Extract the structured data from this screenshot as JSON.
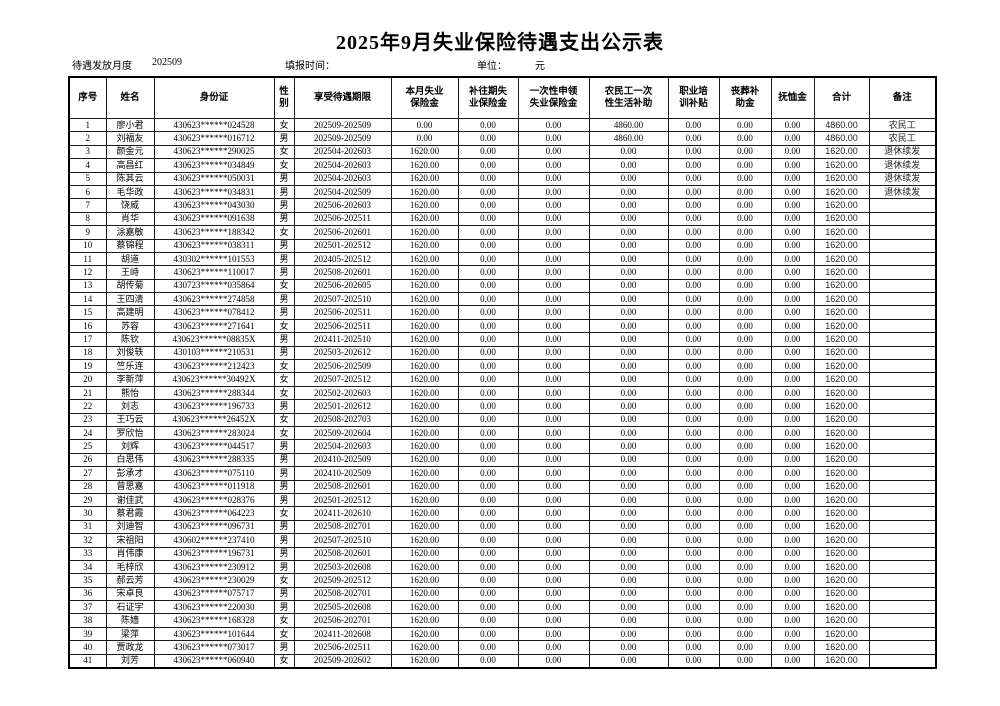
{
  "title": "2025年9月失业保险待遇支出公示表",
  "meta": {
    "period_label": "待遇发放月度",
    "period_value": "202509",
    "fill_time_label": "填报时间：",
    "unit_label": "单位：",
    "unit_value": "元"
  },
  "table": {
    "columns": [
      "序号",
      "姓名",
      "身份证",
      "性\n别",
      "享受待遇期限",
      "本月失业\n保险金",
      "补往期失\n业保险金",
      "一次性申领\n失业保险金",
      "农民工一次\n性生活补助",
      "职业培\n训补贴",
      "丧葬补\n助金",
      "抚恤金",
      "合计",
      "备注"
    ],
    "rows": [
      [
        "1",
        "廖小君",
        "430623******024528",
        "女",
        "202509-202509",
        "0.00",
        "0.00",
        "0.00",
        "4860.00",
        "0.00",
        "0.00",
        "0.00",
        "4860.00",
        "农民工"
      ],
      [
        "2",
        "刘福友",
        "430623******016712",
        "男",
        "202509-202509",
        "0.00",
        "0.00",
        "0.00",
        "4860.00",
        "0.00",
        "0.00",
        "0.00",
        "4860.00",
        "农民工"
      ],
      [
        "3",
        "颜金元",
        "430623******290025",
        "女",
        "202504-202603",
        "1620.00",
        "0.00",
        "0.00",
        "0.00",
        "0.00",
        "0.00",
        "0.00",
        "1620.00",
        "退休续发"
      ],
      [
        "4",
        "高昌红",
        "430623******034849",
        "女",
        "202504-202603",
        "1620.00",
        "0.00",
        "0.00",
        "0.00",
        "0.00",
        "0.00",
        "0.00",
        "1620.00",
        "退休续发"
      ],
      [
        "5",
        "陈其云",
        "430623******050031",
        "男",
        "202504-202603",
        "1620.00",
        "0.00",
        "0.00",
        "0.00",
        "0.00",
        "0.00",
        "0.00",
        "1620.00",
        "退休续发"
      ],
      [
        "6",
        "毛华政",
        "430623******034831",
        "男",
        "202504-202509",
        "1620.00",
        "0.00",
        "0.00",
        "0.00",
        "0.00",
        "0.00",
        "0.00",
        "1620.00",
        "退休续发"
      ],
      [
        "7",
        "饶威",
        "430623******043030",
        "男",
        "202506-202603",
        "1620.00",
        "0.00",
        "0.00",
        "0.00",
        "0.00",
        "0.00",
        "0.00",
        "1620.00",
        ""
      ],
      [
        "8",
        "肖华",
        "430623******091638",
        "男",
        "202506-202511",
        "1620.00",
        "0.00",
        "0.00",
        "0.00",
        "0.00",
        "0.00",
        "0.00",
        "1620.00",
        ""
      ],
      [
        "9",
        "涂嘉敏",
        "430623******188342",
        "女",
        "202506-202601",
        "1620.00",
        "0.00",
        "0.00",
        "0.00",
        "0.00",
        "0.00",
        "0.00",
        "1620.00",
        ""
      ],
      [
        "10",
        "蔡锦程",
        "430623******038311",
        "男",
        "202501-202512",
        "1620.00",
        "0.00",
        "0.00",
        "0.00",
        "0.00",
        "0.00",
        "0.00",
        "1620.00",
        ""
      ],
      [
        "11",
        "胡道",
        "430302******101553",
        "男",
        "202405-202512",
        "1620.00",
        "0.00",
        "0.00",
        "0.00",
        "0.00",
        "0.00",
        "0.00",
        "1620.00",
        ""
      ],
      [
        "12",
        "王峙",
        "430623******110017",
        "男",
        "202508-202601",
        "1620.00",
        "0.00",
        "0.00",
        "0.00",
        "0.00",
        "0.00",
        "0.00",
        "1620.00",
        ""
      ],
      [
        "13",
        "胡传菊",
        "430723******035864",
        "女",
        "202506-202605",
        "1620.00",
        "0.00",
        "0.00",
        "0.00",
        "0.00",
        "0.00",
        "0.00",
        "1620.00",
        ""
      ],
      [
        "14",
        "王四清",
        "430623******274858",
        "男",
        "202507-202510",
        "1620.00",
        "0.00",
        "0.00",
        "0.00",
        "0.00",
        "0.00",
        "0.00",
        "1620.00",
        ""
      ],
      [
        "15",
        "高建明",
        "430623******078412",
        "男",
        "202506-202511",
        "1620.00",
        "0.00",
        "0.00",
        "0.00",
        "0.00",
        "0.00",
        "0.00",
        "1620.00",
        ""
      ],
      [
        "16",
        "苏容",
        "430623******271641",
        "女",
        "202506-202511",
        "1620.00",
        "0.00",
        "0.00",
        "0.00",
        "0.00",
        "0.00",
        "0.00",
        "1620.00",
        ""
      ],
      [
        "17",
        "陈钦",
        "430623******08835X",
        "男",
        "202411-202510",
        "1620.00",
        "0.00",
        "0.00",
        "0.00",
        "0.00",
        "0.00",
        "0.00",
        "1620.00",
        ""
      ],
      [
        "18",
        "刘俊轶",
        "430103******210531",
        "男",
        "202503-202612",
        "1620.00",
        "0.00",
        "0.00",
        "0.00",
        "0.00",
        "0.00",
        "0.00",
        "1620.00",
        ""
      ],
      [
        "19",
        "竺乐连",
        "430623******212423",
        "女",
        "202506-202509",
        "1620.00",
        "0.00",
        "0.00",
        "0.00",
        "0.00",
        "0.00",
        "0.00",
        "1620.00",
        ""
      ],
      [
        "20",
        "李新萍",
        "430623******30492X",
        "女",
        "202507-202512",
        "1620.00",
        "0.00",
        "0.00",
        "0.00",
        "0.00",
        "0.00",
        "0.00",
        "1620.00",
        ""
      ],
      [
        "21",
        "熊怡",
        "430623******288344",
        "女",
        "202502-202603",
        "1620.00",
        "0.00",
        "0.00",
        "0.00",
        "0.00",
        "0.00",
        "0.00",
        "1620.00",
        ""
      ],
      [
        "22",
        "刘志",
        "430623******196733",
        "男",
        "202501-202612",
        "1620.00",
        "0.00",
        "0.00",
        "0.00",
        "0.00",
        "0.00",
        "0.00",
        "1620.00",
        ""
      ],
      [
        "23",
        "王巧云",
        "430623******26452X",
        "女",
        "202508-202703",
        "1620.00",
        "0.00",
        "0.00",
        "0.00",
        "0.00",
        "0.00",
        "0.00",
        "1620.00",
        ""
      ],
      [
        "24",
        "罗欣怡",
        "430623******283024",
        "女",
        "202509-202604",
        "1620.00",
        "0.00",
        "0.00",
        "0.00",
        "0.00",
        "0.00",
        "0.00",
        "1620.00",
        ""
      ],
      [
        "25",
        "刘辉",
        "430623******044517",
        "男",
        "202504-202603",
        "1620.00",
        "0.00",
        "0.00",
        "0.00",
        "0.00",
        "0.00",
        "0.00",
        "1620.00",
        ""
      ],
      [
        "26",
        "白思伟",
        "430623******288335",
        "男",
        "202410-202509",
        "1620.00",
        "0.00",
        "0.00",
        "0.00",
        "0.00",
        "0.00",
        "0.00",
        "1620.00",
        ""
      ],
      [
        "27",
        "彭承才",
        "430623******075110",
        "男",
        "202410-202509",
        "1620.00",
        "0.00",
        "0.00",
        "0.00",
        "0.00",
        "0.00",
        "0.00",
        "1620.00",
        ""
      ],
      [
        "28",
        "曾思嘉",
        "430623******011918",
        "男",
        "202508-202601",
        "1620.00",
        "0.00",
        "0.00",
        "0.00",
        "0.00",
        "0.00",
        "0.00",
        "1620.00",
        ""
      ],
      [
        "29",
        "谢佳武",
        "430623******028376",
        "男",
        "202501-202512",
        "1620.00",
        "0.00",
        "0.00",
        "0.00",
        "0.00",
        "0.00",
        "0.00",
        "1620.00",
        ""
      ],
      [
        "30",
        "蔡君霞",
        "430623******064223",
        "女",
        "202411-202610",
        "1620.00",
        "0.00",
        "0.00",
        "0.00",
        "0.00",
        "0.00",
        "0.00",
        "1620.00",
        ""
      ],
      [
        "31",
        "刘迪智",
        "430623******096731",
        "男",
        "202508-202701",
        "1620.00",
        "0.00",
        "0.00",
        "0.00",
        "0.00",
        "0.00",
        "0.00",
        "1620.00",
        ""
      ],
      [
        "32",
        "宋祖阳",
        "430602******237410",
        "男",
        "202507-202510",
        "1620.00",
        "0.00",
        "0.00",
        "0.00",
        "0.00",
        "0.00",
        "0.00",
        "1620.00",
        ""
      ],
      [
        "33",
        "肖伟康",
        "430623******196731",
        "男",
        "202508-202601",
        "1620.00",
        "0.00",
        "0.00",
        "0.00",
        "0.00",
        "0.00",
        "0.00",
        "1620.00",
        ""
      ],
      [
        "34",
        "毛梓欣",
        "430623******230912",
        "男",
        "202503-202608",
        "1620.00",
        "0.00",
        "0.00",
        "0.00",
        "0.00",
        "0.00",
        "0.00",
        "1620.00",
        ""
      ],
      [
        "35",
        "郝云芳",
        "430623******230029",
        "女",
        "202509-202512",
        "1620.00",
        "0.00",
        "0.00",
        "0.00",
        "0.00",
        "0.00",
        "0.00",
        "1620.00",
        ""
      ],
      [
        "36",
        "宋卓良",
        "430623******075717",
        "男",
        "202508-202701",
        "1620.00",
        "0.00",
        "0.00",
        "0.00",
        "0.00",
        "0.00",
        "0.00",
        "1620.00",
        ""
      ],
      [
        "37",
        "石证宇",
        "430623******220030",
        "男",
        "202505-202608",
        "1620.00",
        "0.00",
        "0.00",
        "0.00",
        "0.00",
        "0.00",
        "0.00",
        "1620.00",
        ""
      ],
      [
        "38",
        "陈嫱",
        "430623******168328",
        "女",
        "202506-202701",
        "1620.00",
        "0.00",
        "0.00",
        "0.00",
        "0.00",
        "0.00",
        "0.00",
        "1620.00",
        ""
      ],
      [
        "39",
        "梁萍",
        "430623******101644",
        "女",
        "202411-202608",
        "1620.00",
        "0.00",
        "0.00",
        "0.00",
        "0.00",
        "0.00",
        "0.00",
        "1620.00",
        ""
      ],
      [
        "40",
        "贾政龙",
        "430623******073017",
        "男",
        "202506-202511",
        "1620.00",
        "0.00",
        "0.00",
        "0.00",
        "0.00",
        "0.00",
        "0.00",
        "1620.00",
        ""
      ],
      [
        "41",
        "刘芳",
        "430623******060940",
        "女",
        "202509-202602",
        "1620.00",
        "0.00",
        "0.00",
        "0.00",
        "0.00",
        "0.00",
        "0.00",
        "1620.00",
        ""
      ]
    ]
  }
}
